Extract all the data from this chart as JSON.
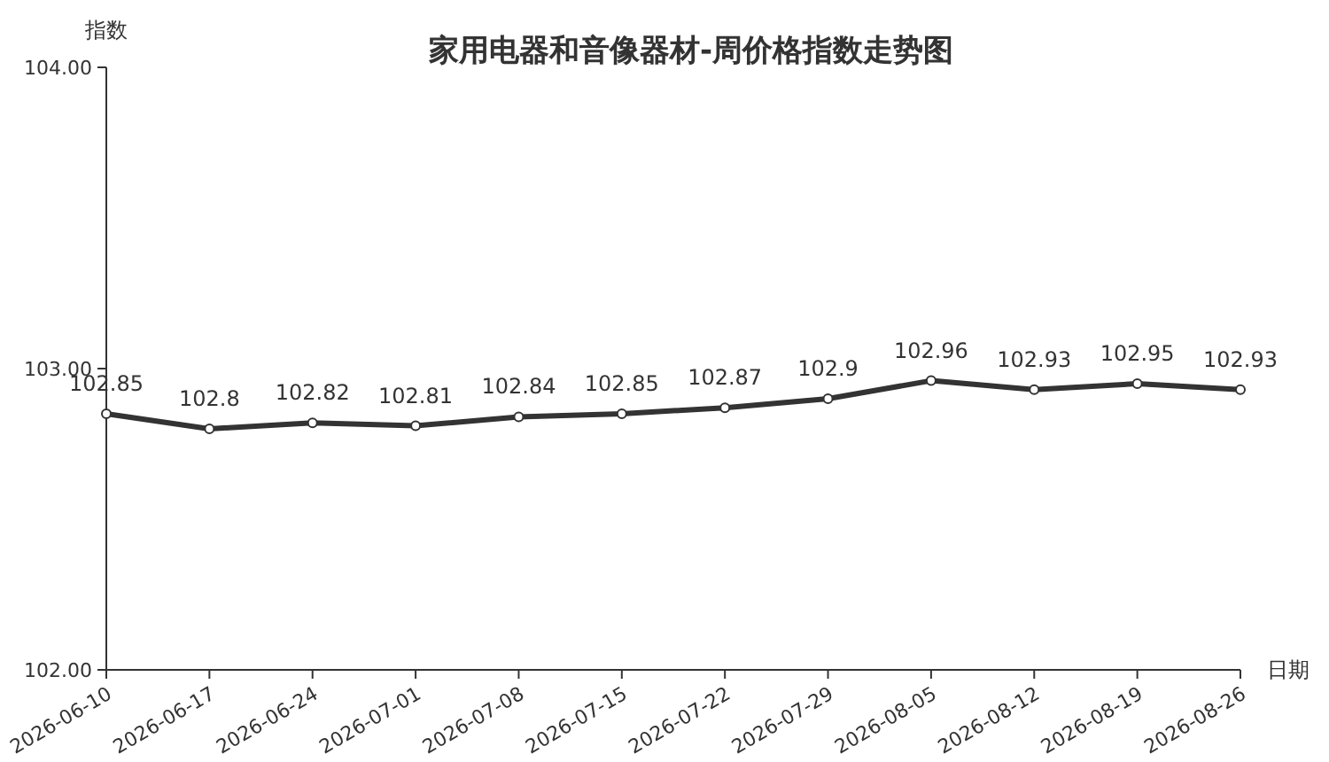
{
  "chart_data": {
    "type": "line",
    "title": "家用电器和音像器材-周价格指数走势图",
    "xlabel": "日期",
    "ylabel": "指数",
    "categories": [
      "2026-06-10",
      "2026-06-17",
      "2026-06-24",
      "2026-07-01",
      "2026-07-08",
      "2026-07-15",
      "2026-07-22",
      "2026-07-29",
      "2026-08-05",
      "2026-08-12",
      "2026-08-19",
      "2026-08-26"
    ],
    "series": [
      {
        "color": "#333333",
        "values": [
          102.85,
          102.8,
          102.82,
          102.81,
          102.84,
          102.85,
          102.87,
          102.9,
          102.96,
          102.93,
          102.95,
          102.93
        ]
      }
    ],
    "ylim": [
      102,
      104
    ],
    "yticks": [
      {
        "value": 102,
        "label": "102.00"
      },
      {
        "value": 103,
        "label": "103.00"
      },
      {
        "value": 104,
        "label": "104.00"
      }
    ],
    "data_labels": true,
    "marker": "circle",
    "line_style": "solid"
  }
}
